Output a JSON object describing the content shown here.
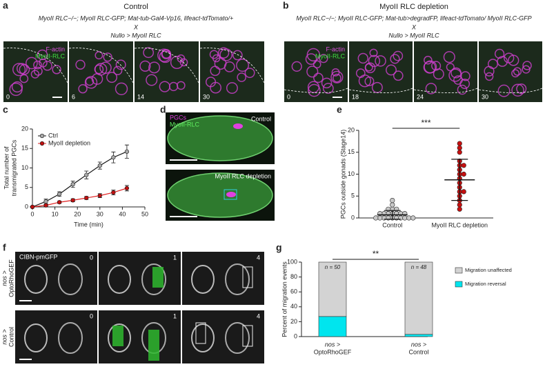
{
  "panels": {
    "a": {
      "label": "a",
      "title": "Control",
      "genotype": [
        "MyoII RLC−/−; MyoII RLC-GFP; Mat-tub-Gal4-Vp16, lifeact-tdTomato/+",
        "X",
        "Nullo > MyoII RLC"
      ],
      "channels": [
        "F-actin",
        "MyoII-RLC"
      ],
      "times": [
        0,
        6,
        14,
        30
      ]
    },
    "b": {
      "label": "b",
      "title": "MyoII RLC depletion",
      "genotype": [
        "MyoII RLC−/−; MyoII RLC-GFP; Mat-tub>degradFP, lifeact-tdTomato/ MyoII RLC-GFP",
        "X",
        "Nullo > MyoII RLC"
      ],
      "channels": [
        "F-actin",
        "MyoII-RLC"
      ],
      "times": [
        0,
        18,
        24,
        30
      ]
    },
    "d": {
      "label": "d",
      "channels": [
        "PGCs",
        "MyoII-RLC"
      ],
      "conditions": [
        "Control",
        "MyoII  RLC depletion"
      ]
    },
    "f": {
      "label": "f",
      "marker": "CIBN-pmGFP",
      "rows": [
        [
          "nos >",
          "OptoRhoGEF"
        ],
        [
          "nos >",
          "Control"
        ]
      ],
      "times": [
        0,
        1,
        4
      ]
    }
  },
  "chart_data": [
    {
      "type": "line",
      "panel_label": "c",
      "x_label": "Time (min)",
      "y_label": [
        "Total  number of",
        "transmigrated PGCs"
      ],
      "x": [
        0,
        6,
        12,
        18,
        24,
        30,
        36,
        42
      ],
      "xlim": [
        0,
        50
      ],
      "xticks": [
        0,
        10,
        20,
        30,
        40,
        50
      ],
      "ylim": [
        0,
        20
      ],
      "yticks": [
        0,
        5,
        10,
        15,
        20
      ],
      "legend": "upper left",
      "series": [
        {
          "name": "Ctrl",
          "color": "#a8a8a8",
          "line_color": "#111111",
          "values": [
            0,
            1.4,
            3.3,
            5.8,
            8.2,
            10.6,
            12.7,
            14.2
          ],
          "errors": [
            0,
            0.6,
            0.6,
            0.8,
            1,
            0.9,
            1.4,
            1.7
          ]
        },
        {
          "name": "MyoII depletion",
          "color": "#c01010",
          "line_color": "#e02020",
          "values": [
            0,
            0.4,
            1.2,
            1.7,
            2.3,
            2.9,
            3.7,
            4.8
          ],
          "errors": [
            0,
            0.3,
            0.3,
            0.4,
            0.4,
            0.5,
            0.6,
            0.7
          ]
        }
      ]
    },
    {
      "type": "dot",
      "panel_label": "e",
      "y_label": "PGCs outside gonads (Stage14)",
      "categories": [
        "Control",
        "MyoII RLC depletion"
      ],
      "colors": [
        "#c8c8c8",
        "#c81010"
      ],
      "values": [
        [
          0,
          0,
          0,
          0,
          0,
          0,
          0,
          0,
          1,
          1,
          1,
          1,
          1,
          1,
          2,
          2,
          2,
          3,
          4,
          0,
          1,
          0
        ],
        [
          17,
          16,
          15,
          13,
          12,
          12,
          11,
          10,
          10,
          9,
          8,
          7,
          6,
          6,
          5,
          4,
          3,
          2
        ]
      ],
      "mean": [
        0.7,
        8.7
      ],
      "sd": [
        1,
        4.7
      ],
      "significance": "***",
      "ylim": [
        0,
        20
      ],
      "yticks": [
        0,
        5,
        10,
        15,
        20
      ]
    },
    {
      "type": "bar",
      "stacked": true,
      "panel_label": "g",
      "y_label": "Percent of migration events",
      "categories": [
        [
          "nos >",
          "OptoRhoGEF"
        ],
        [
          "nos >",
          "Control"
        ]
      ],
      "series": [
        {
          "name": "Migration reversal",
          "color": "#00e5ee",
          "values": [
            27,
            3
          ]
        },
        {
          "name": "Migration unaffected",
          "color": "#d3d3d3",
          "values": [
            73,
            97
          ]
        }
      ],
      "n_labels": [
        "n = 50",
        "n = 48"
      ],
      "significance": "**",
      "ylim": [
        0,
        100
      ],
      "yticks": [
        0,
        20,
        40,
        60,
        80,
        100
      ]
    }
  ]
}
